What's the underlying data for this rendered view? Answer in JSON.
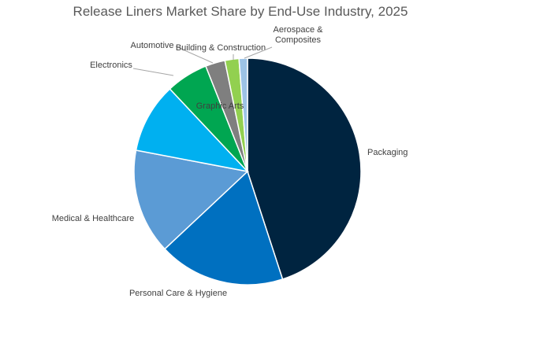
{
  "chart_data": {
    "type": "pie",
    "title": "Release Liners Market Share by End-Use Industry, 2025",
    "categories": [
      "Packaging",
      "Personal Care & Hygiene",
      "Medical & Healthcare",
      "Electronics",
      "Graphic Arts",
      "Automotive",
      "Building & Construction",
      "Aerospace & Composites"
    ],
    "values": [
      45,
      18,
      15,
      10,
      6,
      2.8,
      2,
      1.2
    ],
    "colors": [
      "#002440",
      "#0070c0",
      "#5b9bd5",
      "#00b0f0",
      "#00a651",
      "#7f7f7f",
      "#92d050",
      "#9dc3e6"
    ],
    "unit": "%",
    "start_angle_deg": 0,
    "direction": "clockwise",
    "legend": "none",
    "data_labels": "category names with leader lines"
  }
}
